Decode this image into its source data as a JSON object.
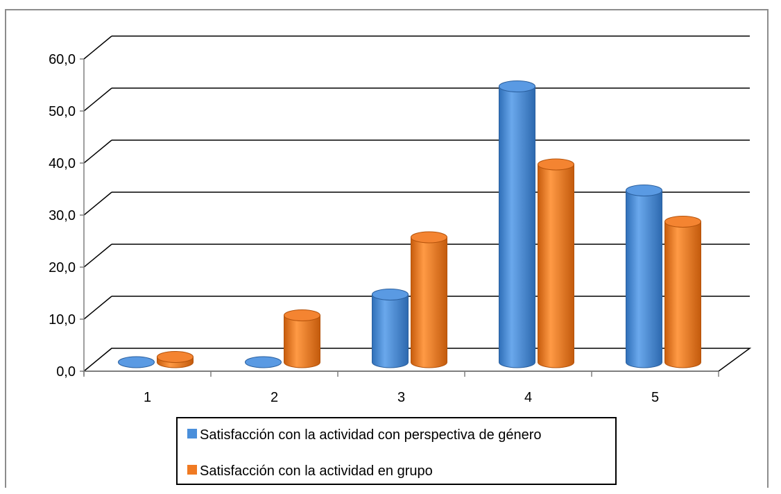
{
  "chart_data": {
    "type": "bar",
    "categories": [
      "1",
      "2",
      "3",
      "4",
      "5"
    ],
    "series": [
      {
        "name": "Satisfacción con la actividad con perspectiva de género",
        "values": [
          0.0,
          0.0,
          13.0,
          53.0,
          33.0
        ],
        "color": "#4a8fdb"
      },
      {
        "name": "Satisfacción con la actividad en grupo",
        "values": [
          1.0,
          9.0,
          24.0,
          38.0,
          27.0
        ],
        "color": "#f07a22"
      }
    ],
    "y_ticks": [
      "0,0",
      "10,0",
      "20,0",
      "30,0",
      "40,0",
      "50,0",
      "60,0"
    ],
    "ylim": [
      0,
      60
    ],
    "grid": true,
    "legend_position": "bottom",
    "style": "3d-cylinder"
  }
}
